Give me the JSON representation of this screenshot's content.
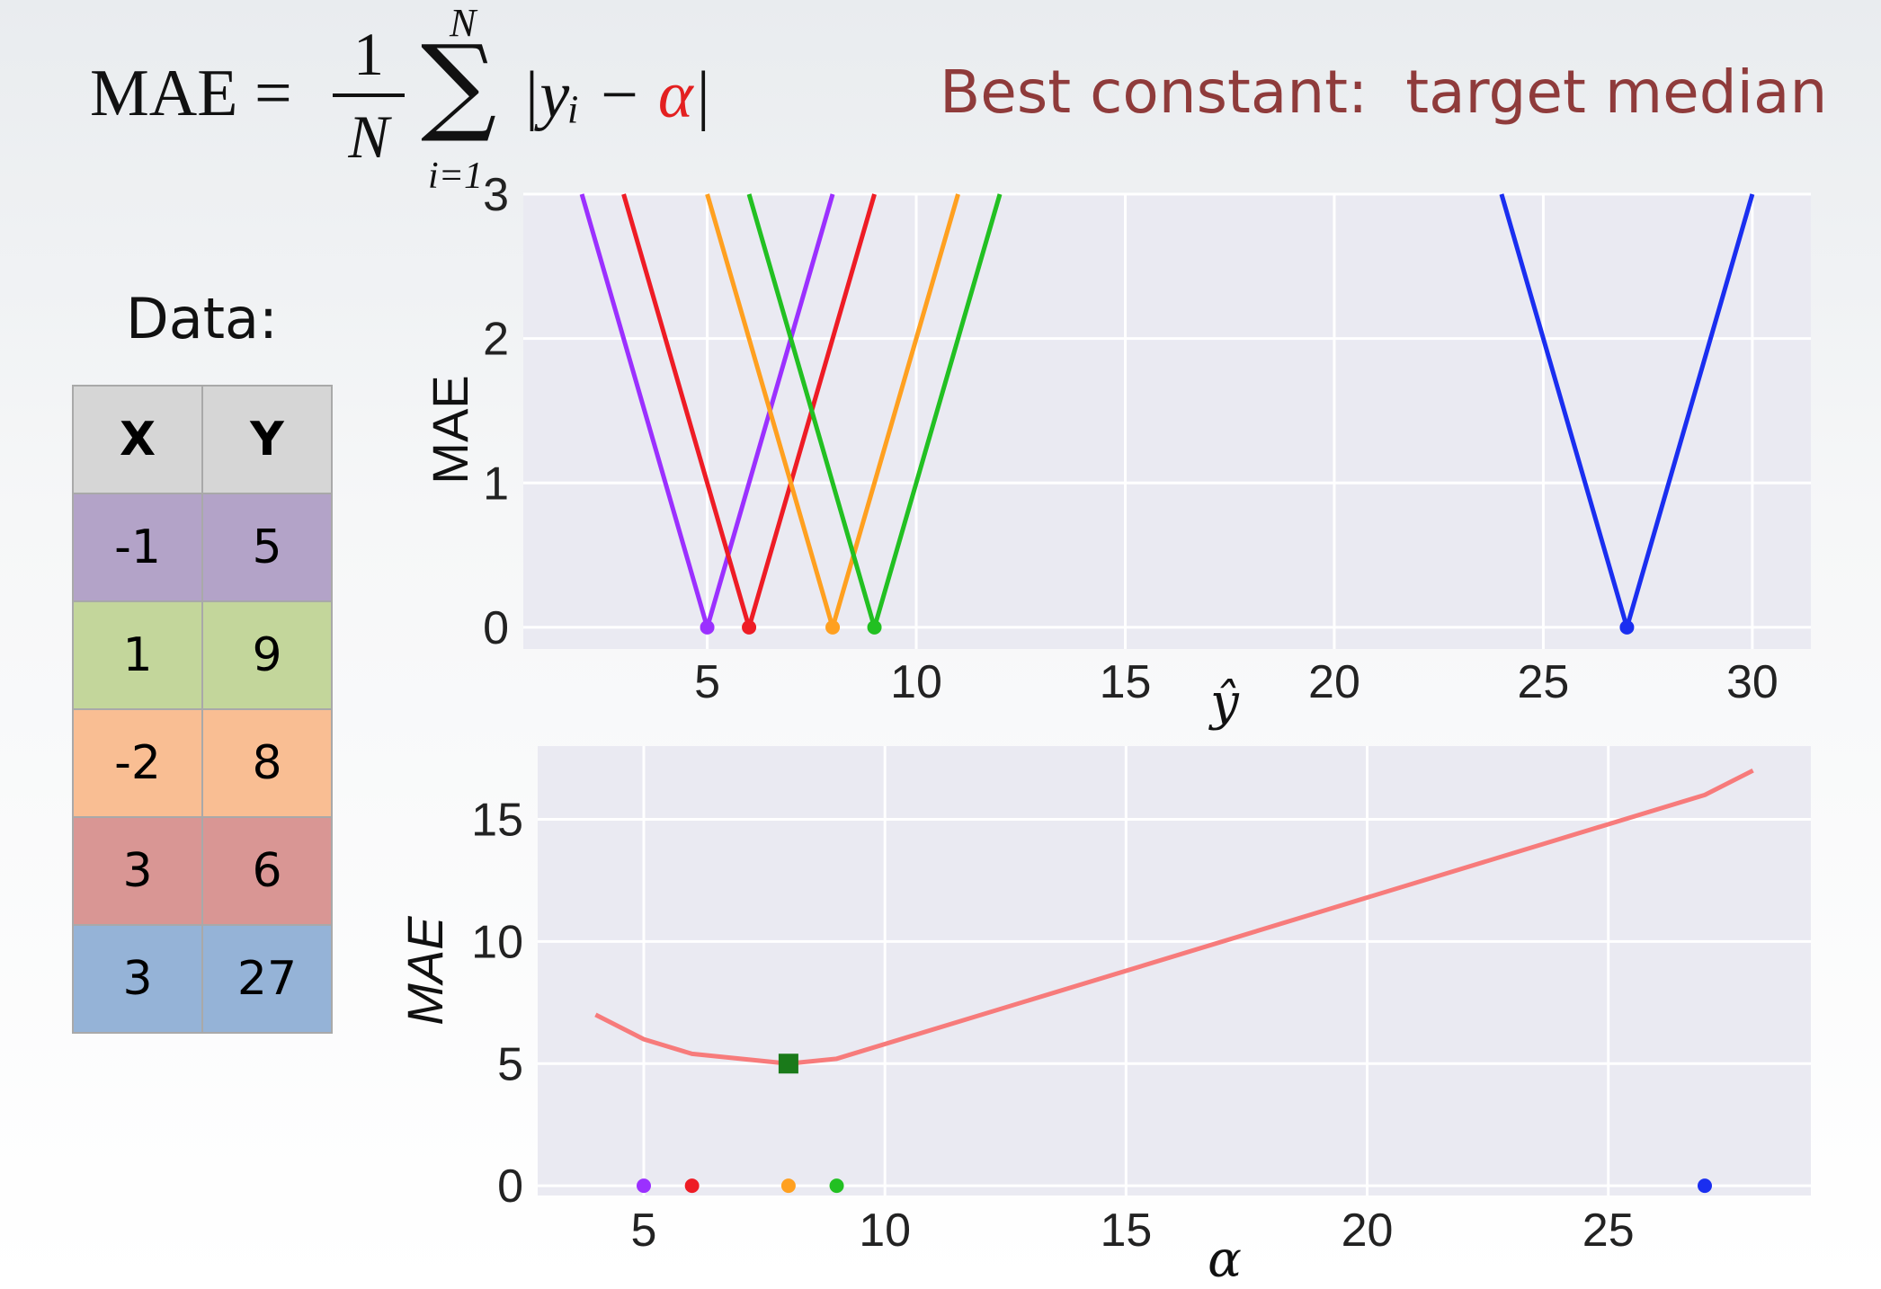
{
  "formula": {
    "lhs": "MAE =",
    "frac_num": "1",
    "frac_den": "N",
    "sum_symbol": "∑",
    "sum_upper": "N",
    "sum_lower": "i=1",
    "abs_open": "|yᵢ − ",
    "alpha": "α",
    "abs_close": "|"
  },
  "headline": "Best constant:  target median",
  "data_table": {
    "label": "Data:",
    "headers": [
      "X",
      "Y"
    ],
    "rows": [
      {
        "x": "-1",
        "y": "5",
        "color": "#b3a3c8"
      },
      {
        "x": "1",
        "y": "9",
        "color": "#c3d69b"
      },
      {
        "x": "-2",
        "y": "8",
        "color": "#f9be93"
      },
      {
        "x": "3",
        "y": "6",
        "color": "#d99694"
      },
      {
        "x": "3",
        "y": "27",
        "color": "#95b3d7"
      }
    ]
  },
  "chart_data": [
    {
      "type": "line",
      "xlabel": "ŷ",
      "ylabel": "MAE",
      "xlim": [
        0.6,
        31.4
      ],
      "ylim": [
        -0.15,
        3.0
      ],
      "xticks": [
        5,
        10,
        15,
        20,
        25,
        30
      ],
      "yticks": [
        0,
        1,
        2,
        3
      ],
      "grid": true,
      "series": [
        {
          "color": "#9b30ff",
          "x": [
            2,
            5,
            8
          ],
          "y": [
            3,
            0,
            3
          ],
          "marker_x": 5,
          "marker_y": 0
        },
        {
          "color": "#ee1c25",
          "x": [
            3,
            6,
            9
          ],
          "y": [
            3,
            0,
            3
          ],
          "marker_x": 6,
          "marker_y": 0
        },
        {
          "color": "#ffa020",
          "x": [
            5,
            8,
            11
          ],
          "y": [
            3,
            0,
            3
          ],
          "marker_x": 8,
          "marker_y": 0
        },
        {
          "color": "#22c022",
          "x": [
            6,
            9,
            12
          ],
          "y": [
            3,
            0,
            3
          ],
          "marker_x": 9,
          "marker_y": 0
        },
        {
          "color": "#1a2ef0",
          "x": [
            24,
            27,
            30
          ],
          "y": [
            3,
            0,
            3
          ],
          "marker_x": 27,
          "marker_y": 0
        }
      ]
    },
    {
      "type": "line",
      "xlabel": "α",
      "ylabel": "MAE",
      "xlim": [
        2.8,
        29.2
      ],
      "ylim": [
        -0.4,
        18.0
      ],
      "xticks": [
        5,
        10,
        15,
        20,
        25
      ],
      "yticks": [
        0,
        5,
        10,
        15
      ],
      "grid": true,
      "curve": {
        "color": "#f77b7b",
        "x": [
          4,
          5,
          6,
          8,
          9,
          27,
          28
        ],
        "y": [
          7.0,
          6.0,
          5.4,
          5.0,
          5.2,
          16.0,
          17.0
        ]
      },
      "minimum": {
        "x": 8,
        "y": 5.0,
        "color": "#1a7a1a"
      },
      "points": [
        {
          "x": 5,
          "y": 0,
          "color": "#9b30ff"
        },
        {
          "x": 6,
          "y": 0,
          "color": "#ee1c25"
        },
        {
          "x": 8,
          "y": 0,
          "color": "#ffa020"
        },
        {
          "x": 9,
          "y": 0,
          "color": "#22c022"
        },
        {
          "x": 27,
          "y": 0,
          "color": "#1a2ef0"
        }
      ]
    }
  ]
}
